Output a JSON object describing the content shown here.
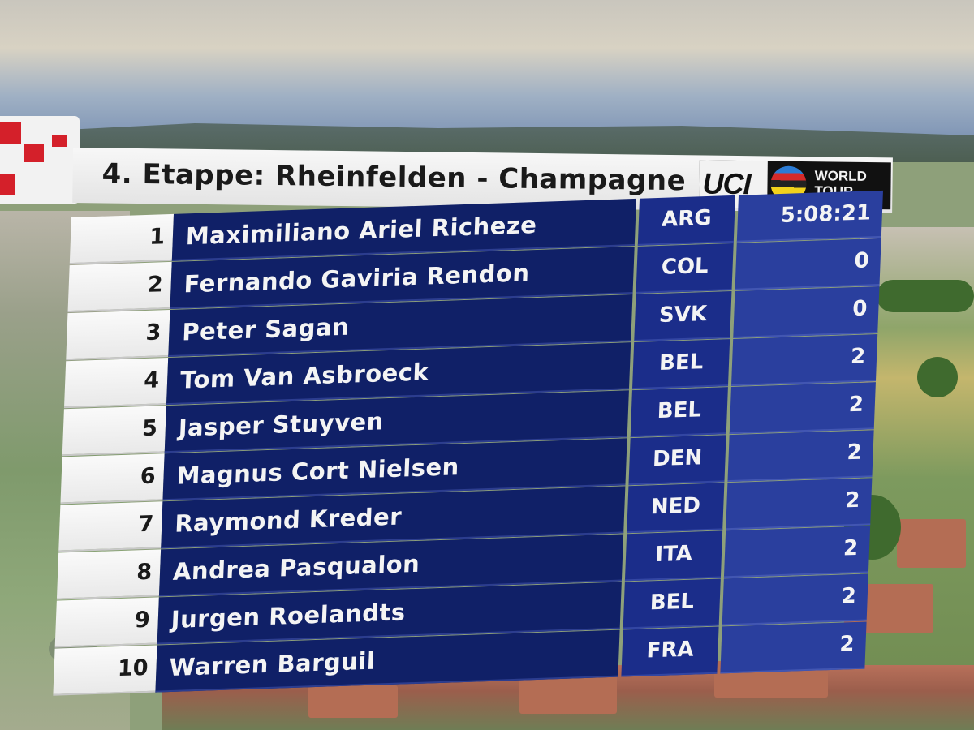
{
  "stage": {
    "title": "4. Etappe: Rheinfelden - Champagne"
  },
  "sponsor": {
    "brand": "UCI",
    "line1": "WORLD",
    "line2": "TOUR"
  },
  "results": [
    {
      "rank": "1",
      "rider": "Maximiliano Ariel Richeze",
      "nation": "ARG",
      "time": "5:08:21"
    },
    {
      "rank": "2",
      "rider": "Fernando Gaviria Rendon",
      "nation": "COL",
      "time": "0"
    },
    {
      "rank": "3",
      "rider": "Peter Sagan",
      "nation": "SVK",
      "time": "0"
    },
    {
      "rank": "4",
      "rider": "Tom Van Asbroeck",
      "nation": "BEL",
      "time": "2"
    },
    {
      "rank": "5",
      "rider": "Jasper Stuyven",
      "nation": "BEL",
      "time": "2"
    },
    {
      "rank": "6",
      "rider": "Magnus Cort Nielsen",
      "nation": "DEN",
      "time": "2"
    },
    {
      "rank": "7",
      "rider": "Raymond Kreder",
      "nation": "NED",
      "time": "2"
    },
    {
      "rank": "8",
      "rider": "Andrea Pasqualon",
      "nation": "ITA",
      "time": "2"
    },
    {
      "rank": "9",
      "rider": "Jurgen Roelandts",
      "nation": "BEL",
      "time": "2"
    },
    {
      "rank": "10",
      "rider": "Warren Barguil",
      "nation": "FRA",
      "time": "2"
    }
  ],
  "colors": {
    "name_bg": "#102067",
    "nation_bg": "#1b2d8a",
    "time_bg": "#2a3f9e",
    "logo_red": "#d4202a"
  }
}
